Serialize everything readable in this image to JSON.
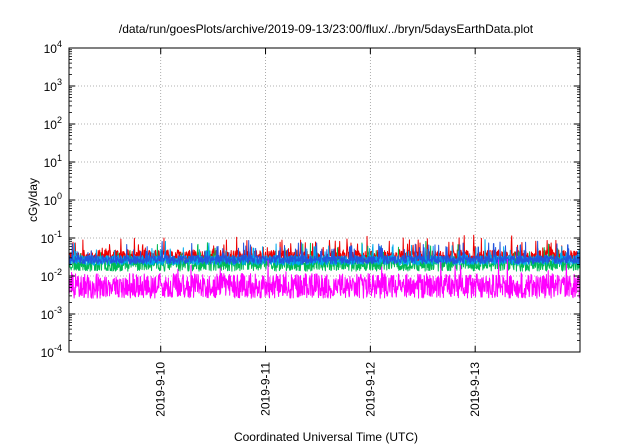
{
  "chart_data": {
    "type": "line",
    "title": "/data/run/goesPlots/archive/2019-09-13/23:00/flux/../bryn/5daysEarthData.plot",
    "xlabel": "Coordinated Universal Time (UTC)",
    "ylabel": "cGy/day",
    "yscale": "log",
    "ylim": [
      0.0001,
      10000
    ],
    "xlim": [
      "2019-09-09 03:00",
      "2019-09-14 00:00"
    ],
    "grid": true,
    "y_ticks": [
      {
        "base": "10",
        "exp": "-4"
      },
      {
        "base": "10",
        "exp": "-3"
      },
      {
        "base": "10",
        "exp": "-2"
      },
      {
        "base": "10",
        "exp": "-1"
      },
      {
        "base": "10",
        "exp": "0"
      },
      {
        "base": "10",
        "exp": "1"
      },
      {
        "base": "10",
        "exp": "2"
      },
      {
        "base": "10",
        "exp": "3"
      },
      {
        "base": "10",
        "exp": "4"
      }
    ],
    "x_ticks": [
      {
        "label": "2019-9-10",
        "date": "2019-09-10 00:00"
      },
      {
        "label": "2019-9-11",
        "date": "2019-09-11 00:00"
      },
      {
        "label": "2019-9-12",
        "date": "2019-09-12 00:00"
      },
      {
        "label": "2019-9-13",
        "date": "2019-09-13 00:00"
      }
    ],
    "series": [
      {
        "color": "#ee0000",
        "base": 0.033,
        "spread": 0.38,
        "spikes": 0.045,
        "seed": 11
      },
      {
        "color": "#00bb55",
        "base": 0.021,
        "spread": 0.45,
        "spikes": 0.03,
        "seed": 23
      },
      {
        "color": "#00aaee",
        "base": 0.026,
        "spread": 0.3,
        "spikes": 0.04,
        "seed": 37
      },
      {
        "color": "#2255dd",
        "base": 0.027,
        "spread": 0.25,
        "spikes": 0.07,
        "seed": 41
      },
      {
        "color": "#ff00ff",
        "base": 0.0055,
        "spread": 0.75,
        "spikes": 0.02,
        "seed": 59
      }
    ]
  }
}
